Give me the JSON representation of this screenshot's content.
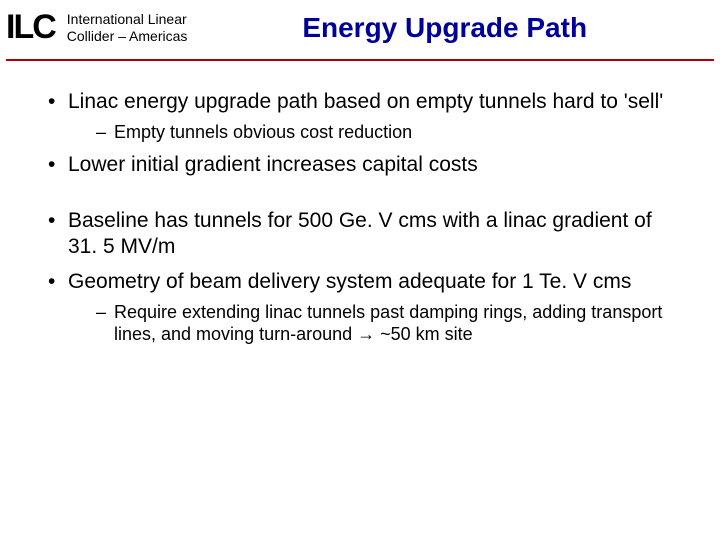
{
  "header": {
    "logo_text": "ILC",
    "org_line1": "International Linear",
    "org_line2": "Collider – Americas",
    "title": "Energy Upgrade Path"
  },
  "style": {
    "logo_fontsize": 34,
    "logo_color": "#000000",
    "org_fontsize": 14,
    "org_color": "#000000",
    "title_fontsize": 28,
    "title_color": "#000099",
    "divider_color": "#b00000",
    "bullet_fontsize": 21,
    "bullet_color": "#000000",
    "sub_fontsize": 18,
    "sub_color": "#000000",
    "background_color": "#ffffff"
  },
  "bullets": {
    "b1": "Linac energy upgrade path based on empty tunnels hard to 'sell'",
    "b1_sub1": "Empty tunnels obvious cost reduction",
    "b2": "Lower initial gradient increases capital costs",
    "b3": "Baseline has tunnels for 500 Ge. V cms with a linac gradient of 31. 5 MV/m",
    "b4": "Geometry of beam delivery system adequate for 1 Te. V cms",
    "b4_sub1": "Require extending linac tunnels past damping rings, adding transport lines, and moving turn-around → ~50 km site"
  }
}
